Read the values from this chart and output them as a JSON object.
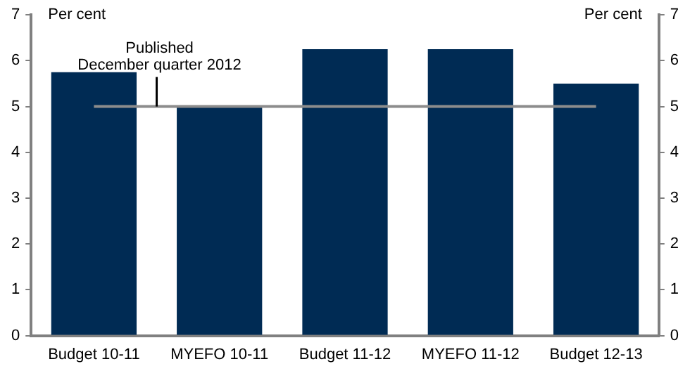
{
  "chart_data": {
    "type": "bar",
    "categories": [
      "Budget 10-11",
      "MYEFO 10-11",
      "Budget 11-12",
      "MYEFO 11-12",
      "Budget 12-13"
    ],
    "values": [
      5.75,
      5.0,
      6.25,
      6.25,
      5.5
    ],
    "color": "#002b54",
    "ylabel": "Per cent",
    "y2label": "Per cent",
    "ylim": [
      0,
      7
    ],
    "yticks": [
      0,
      1,
      2,
      3,
      4,
      5,
      6,
      7
    ],
    "y2lim": [
      0,
      7
    ],
    "y2ticks": [
      0,
      1,
      2,
      3,
      4,
      5,
      6,
      7
    ],
    "ref_lines": [
      {
        "axis": "y",
        "value": 5,
        "label": "Published\nDecember quarter 2012",
        "color": "#8c8c8c"
      }
    ],
    "grid": false,
    "legend": false
  }
}
